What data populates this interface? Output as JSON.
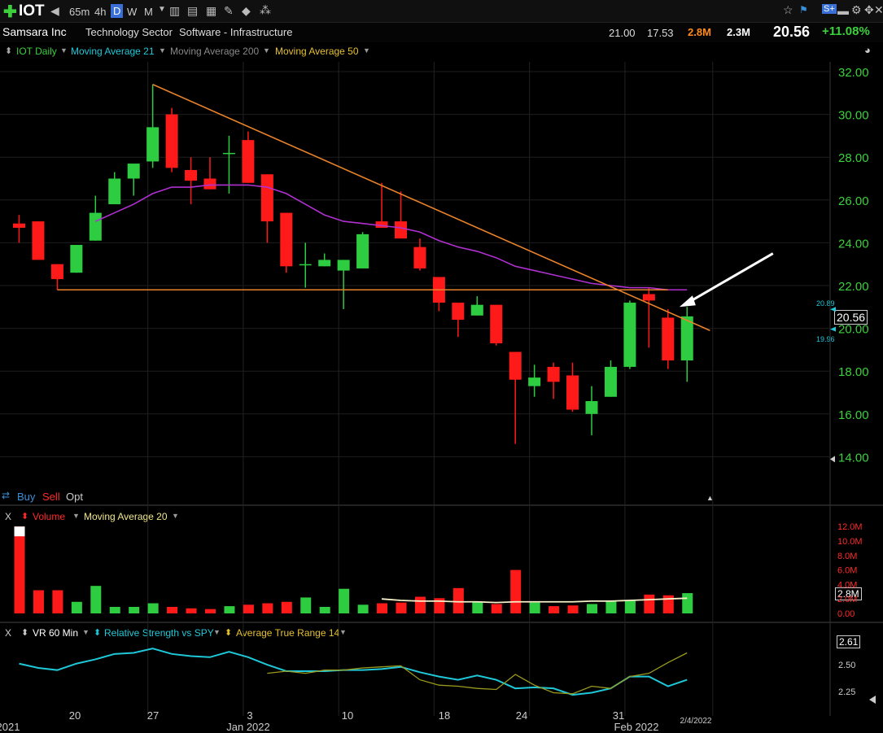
{
  "toolbar": {
    "symbol": "IOT",
    "plus_icon": "plus-icon",
    "intervals": [
      "65m",
      "4h",
      "D",
      "W",
      "M"
    ],
    "active_interval": "D"
  },
  "info": {
    "company": "Samsara Inc",
    "sector": "Technology Sector",
    "industry": "Software - Infrastructure",
    "high": "21.00",
    "low": "17.53",
    "volume": "2.8M",
    "avg_volume": "2.3M",
    "last": "20.56",
    "change_pct": "+11.08%"
  },
  "legend": {
    "series": "IOT Daily",
    "ma21": "Moving Average 21",
    "ma200": "Moving Average 200",
    "ma50": "Moving Average 50"
  },
  "order": {
    "buy": "Buy",
    "sell": "Sell",
    "opt": "Opt"
  },
  "volume_panel": {
    "close": "X",
    "label": "Volume",
    "ma": "Moving Average 20",
    "last_label": "2.8M"
  },
  "indicator_panel": {
    "close": "X",
    "vr": "VR 60 Min",
    "rs": "Relative Strength vs SPY",
    "atr": "Average True Range 14",
    "last_label": "2.61"
  },
  "price_tags": {
    "last": "20.56",
    "upper": "20.89",
    "lower": "19.96"
  },
  "x_axis": {
    "labels": [
      "2021",
      "20",
      "27",
      "3",
      "Jan 2022",
      "10",
      "18",
      "24",
      "31",
      "Feb 2022",
      "2/4/2022"
    ]
  },
  "colors": {
    "up": "#2ecc40",
    "down": "#ff1a1a",
    "ma21": "#b030d0",
    "trend": "#e8822a",
    "rs": "#1ec8d8",
    "atr": "#9a9a1e",
    "price_axis": "#3cd03c",
    "vol_axis": "#ff2a2a"
  },
  "chart_data": [
    {
      "type": "candlestick",
      "title": "IOT Daily",
      "ylim": [
        13,
        33
      ],
      "y_ticks": [
        14,
        16,
        18,
        20,
        22,
        24,
        26,
        28,
        30,
        32
      ],
      "candles": [
        {
          "o": 24.9,
          "h": 25.3,
          "l": 24.0,
          "c": 24.7
        },
        {
          "o": 25.0,
          "h": 25.0,
          "l": 23.2,
          "c": 23.2
        },
        {
          "o": 23.0,
          "h": 23.0,
          "l": 21.8,
          "c": 22.3
        },
        {
          "o": 22.6,
          "h": 23.9,
          "l": 22.6,
          "c": 23.9
        },
        {
          "o": 24.1,
          "h": 26.2,
          "l": 24.1,
          "c": 25.4
        },
        {
          "o": 25.8,
          "h": 27.3,
          "l": 25.8,
          "c": 27.0
        },
        {
          "o": 27.0,
          "h": 27.6,
          "l": 26.2,
          "c": 27.7
        },
        {
          "o": 27.8,
          "h": 31.4,
          "l": 27.5,
          "c": 29.4
        },
        {
          "o": 30.0,
          "h": 30.3,
          "l": 27.3,
          "c": 27.5
        },
        {
          "o": 27.4,
          "h": 28.0,
          "l": 25.8,
          "c": 26.9
        },
        {
          "o": 27.0,
          "h": 28.0,
          "l": 26.5,
          "c": 26.5
        },
        {
          "o": 28.2,
          "h": 29.0,
          "l": 26.3,
          "c": 28.2
        },
        {
          "o": 28.8,
          "h": 29.2,
          "l": 26.8,
          "c": 26.8
        },
        {
          "o": 27.2,
          "h": 27.2,
          "l": 24.0,
          "c": 25.0
        },
        {
          "o": 25.4,
          "h": 25.4,
          "l": 22.6,
          "c": 22.9
        },
        {
          "o": 23.0,
          "h": 24.0,
          "l": 21.9,
          "c": 23.0
        },
        {
          "o": 22.9,
          "h": 23.5,
          "l": 22.9,
          "c": 23.2
        },
        {
          "o": 22.7,
          "h": 23.2,
          "l": 20.9,
          "c": 23.2
        },
        {
          "o": 22.8,
          "h": 24.5,
          "l": 22.8,
          "c": 24.4
        },
        {
          "o": 25.0,
          "h": 26.8,
          "l": 24.7,
          "c": 24.7
        },
        {
          "o": 25.0,
          "h": 26.4,
          "l": 24.2,
          "c": 24.2
        },
        {
          "o": 23.8,
          "h": 24.2,
          "l": 22.7,
          "c": 22.8
        },
        {
          "o": 22.4,
          "h": 22.4,
          "l": 20.8,
          "c": 21.2
        },
        {
          "o": 21.2,
          "h": 21.2,
          "l": 19.6,
          "c": 20.4
        },
        {
          "o": 20.6,
          "h": 21.5,
          "l": 20.6,
          "c": 21.1
        },
        {
          "o": 21.1,
          "h": 21.1,
          "l": 19.2,
          "c": 19.3
        },
        {
          "o": 18.9,
          "h": 18.9,
          "l": 14.6,
          "c": 17.6
        },
        {
          "o": 17.3,
          "h": 18.3,
          "l": 16.8,
          "c": 17.7
        },
        {
          "o": 18.2,
          "h": 18.4,
          "l": 16.7,
          "c": 17.5
        },
        {
          "o": 17.8,
          "h": 18.4,
          "l": 16.1,
          "c": 16.2
        },
        {
          "o": 16.0,
          "h": 17.3,
          "l": 15.0,
          "c": 16.6
        },
        {
          "o": 16.8,
          "h": 18.5,
          "l": 16.8,
          "c": 18.2
        },
        {
          "o": 18.2,
          "h": 21.3,
          "l": 18.1,
          "c": 21.2
        },
        {
          "o": 21.6,
          "h": 21.9,
          "l": 19.1,
          "c": 21.3
        },
        {
          "o": 20.5,
          "h": 20.9,
          "l": 18.1,
          "c": 18.5
        },
        {
          "o": 18.5,
          "h": 21.0,
          "l": 17.5,
          "c": 20.56
        }
      ],
      "ma21": [
        null,
        null,
        null,
        null,
        25.0,
        25.4,
        25.8,
        26.3,
        26.6,
        26.6,
        26.7,
        26.7,
        26.7,
        26.6,
        26.3,
        25.8,
        25.3,
        25.0,
        24.9,
        24.8,
        24.7,
        24.5,
        24.1,
        23.8,
        23.6,
        23.3,
        22.9,
        22.7,
        22.5,
        22.3,
        22.1,
        22.0,
        21.9,
        21.9,
        21.8,
        21.8
      ],
      "annotations": {
        "trendline": {
          "from_index": 7,
          "from_price": 31.4,
          "to_index": 36.2,
          "to_price": 19.9
        },
        "support": {
          "from_index": 2,
          "to_index": 34,
          "price": 21.8
        },
        "arrow": {
          "from_index": 39.5,
          "from_price": 23.5,
          "to_index": 34.6,
          "to_price": 21.0
        }
      }
    },
    {
      "type": "bar",
      "title": "Volume",
      "ylim": [
        0,
        12
      ],
      "y_ticks": [
        "0.00",
        "2.0M",
        "4.0M",
        "6.0M",
        "8.0M",
        "10.0M",
        "12.0M"
      ],
      "values": [
        12.0,
        3.2,
        3.2,
        1.6,
        3.8,
        0.9,
        0.9,
        1.4,
        0.9,
        0.7,
        0.6,
        1.0,
        1.2,
        1.4,
        1.6,
        2.2,
        0.9,
        3.4,
        1.2,
        1.4,
        1.5,
        2.3,
        2.1,
        3.5,
        1.6,
        1.3,
        6.0,
        1.5,
        1.0,
        1.1,
        1.3,
        1.7,
        1.8,
        2.6,
        2.5,
        2.8
      ],
      "ma20": [
        null,
        null,
        null,
        null,
        null,
        null,
        null,
        null,
        null,
        null,
        null,
        null,
        null,
        null,
        null,
        null,
        null,
        null,
        null,
        2.0,
        1.8,
        1.7,
        1.7,
        1.6,
        1.6,
        1.5,
        1.6,
        1.6,
        1.6,
        1.6,
        1.7,
        1.7,
        1.8,
        1.9,
        2.0,
        2.1
      ]
    },
    {
      "type": "line",
      "title": "Relative Strength vs SPY",
      "y_ticks": [
        "2.25",
        "2.50"
      ],
      "ylim": [
        2.1,
        2.78
      ],
      "rs": [
        2.51,
        2.47,
        2.45,
        2.51,
        2.55,
        2.6,
        2.61,
        2.65,
        2.6,
        2.58,
        2.57,
        2.62,
        2.57,
        2.5,
        2.44,
        2.44,
        2.44,
        2.45,
        2.45,
        2.46,
        2.48,
        2.43,
        2.39,
        2.36,
        2.4,
        2.36,
        2.28,
        2.29,
        2.28,
        2.22,
        2.24,
        2.28,
        2.39,
        2.39,
        2.3,
        2.36
      ],
      "atr": [
        null,
        null,
        null,
        null,
        null,
        null,
        null,
        null,
        null,
        null,
        null,
        null,
        null,
        2.42,
        2.44,
        2.42,
        2.45,
        2.45,
        2.47,
        2.48,
        2.49,
        2.36,
        2.31,
        2.3,
        2.28,
        2.27,
        2.41,
        2.31,
        2.24,
        2.23,
        2.3,
        2.28,
        2.39,
        2.42,
        2.52,
        2.61
      ]
    }
  ]
}
